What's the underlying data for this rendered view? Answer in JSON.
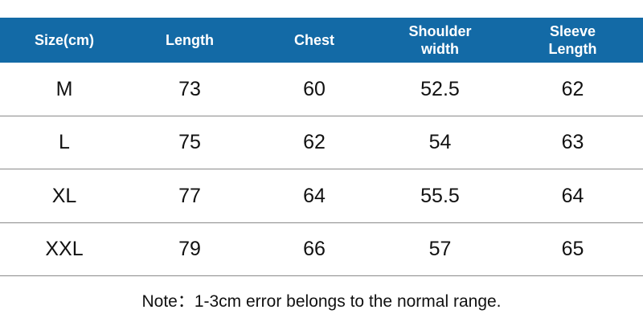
{
  "table": {
    "header": [
      "Size(cm)",
      "Length",
      "Chest",
      "Shoulder width",
      "Sleeve Length"
    ],
    "rows": [
      [
        "M",
        73,
        60,
        52.5,
        62
      ],
      [
        "L",
        75,
        62,
        54,
        63
      ],
      [
        "XL",
        77,
        64,
        55.5,
        64
      ],
      [
        "XXL",
        79,
        66,
        57,
        65
      ]
    ]
  },
  "note": "Note：1-3cm error belongs to the normal range."
}
